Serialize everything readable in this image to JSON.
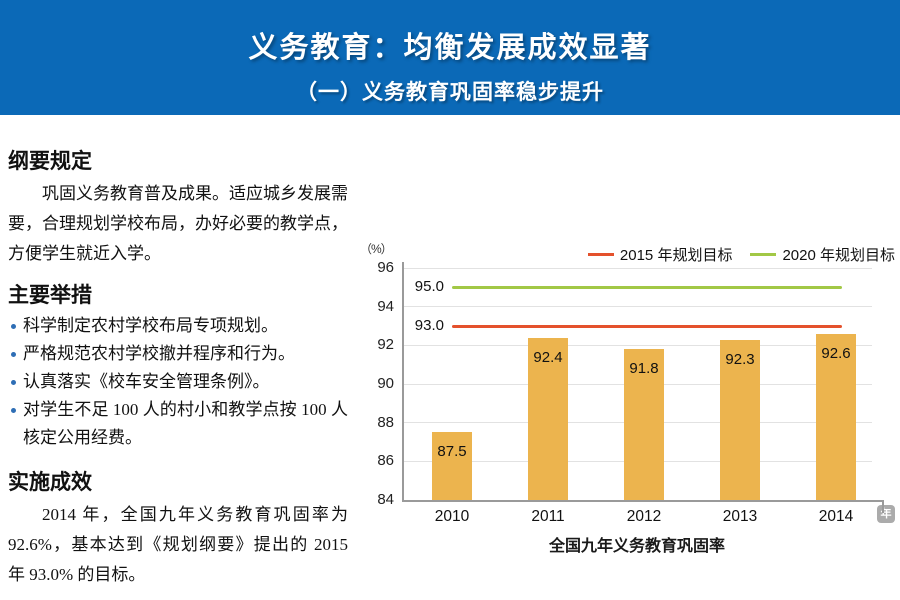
{
  "header": {
    "title": "义务教育：均衡发展成效显著",
    "subtitle": "（一）义务教育巩固率稳步提升"
  },
  "left_panel": {
    "sections": [
      {
        "heading": "纲要规定",
        "paragraphs": [
          "巩固义务教育普及成果。适应城乡发展需要，合理规划学校布局，办好必要的教学点，方便学生就近入学。"
        ]
      },
      {
        "heading": "主要举措",
        "bullets": [
          "科学制定农村学校布局专项规划。",
          "严格规范农村学校撤并程序和行为。",
          "认真落实《校车安全管理条例》。",
          "对学生不足 100 人的村小和教学点按 100 人核定公用经费。"
        ]
      },
      {
        "heading": "实施成效",
        "paragraphs": [
          "2014 年，全国九年义务教育巩固率为 92.6%，基本达到《规划纲要》提出的 2015 年 93.0% 的目标。"
        ]
      }
    ]
  },
  "chart_data": {
    "type": "bar",
    "title": "全国九年义务教育巩固率",
    "unit_label": "（%）",
    "axis_unit_badge": "年",
    "categories": [
      "2010",
      "2011",
      "2012",
      "2013",
      "2014"
    ],
    "values": [
      87.5,
      92.4,
      91.8,
      92.3,
      92.6
    ],
    "value_labels": [
      "87.5",
      "92.4",
      "91.8",
      "92.3",
      "92.6"
    ],
    "ylim": [
      84,
      96
    ],
    "yticks": [
      96,
      94,
      92,
      90,
      88,
      86,
      84
    ],
    "grid": true,
    "legend_position": "top-right",
    "bar_color": "#ecb44e",
    "reference_lines": [
      {
        "label": "2015 年规划目标",
        "value": 93.0,
        "value_label": "93.0",
        "color": "#e4512c"
      },
      {
        "label": "2020 年规划目标",
        "value": 95.0,
        "value_label": "95.0",
        "color": "#a2c846"
      }
    ]
  },
  "colors": {
    "header_bg": "#0b69b7",
    "bullet": "#2e6eb5",
    "axis": "#9a9a9a",
    "gridline": "#e2e2e2",
    "badge_bg": "#ababab"
  }
}
